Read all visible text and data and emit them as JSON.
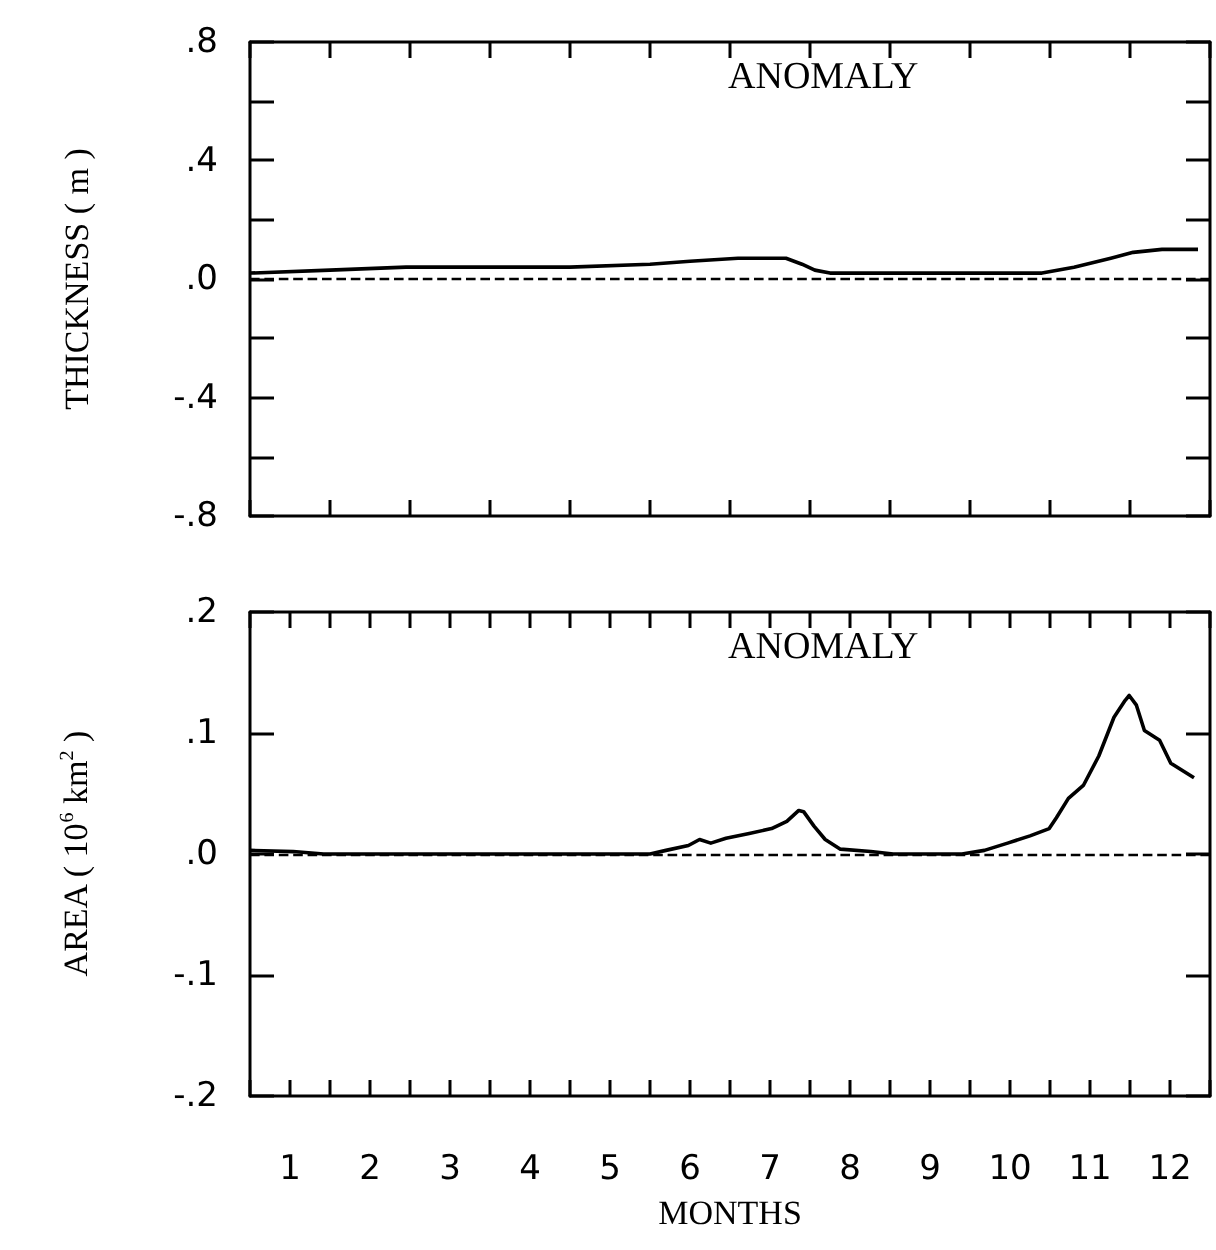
{
  "chart_data": [
    {
      "type": "line",
      "ylabel": "THICKNESS ( m )",
      "annotations": [
        "ANOMALY"
      ],
      "tick_labels": "y",
      "grid": false,
      "marker": "none",
      "line_style": "solid",
      "xlim": [
        0,
        12
      ],
      "xticks": [
        {
          "value": 0,
          "label": null
        },
        {
          "value": 1,
          "label": null
        },
        {
          "value": 2,
          "label": null
        },
        {
          "value": 3,
          "label": null
        },
        {
          "value": 4,
          "label": null
        },
        {
          "value": 5,
          "label": null
        },
        {
          "value": 6,
          "label": null
        },
        {
          "value": 7,
          "label": null
        },
        {
          "value": 8,
          "label": null
        },
        {
          "value": 9,
          "label": null
        },
        {
          "value": 10,
          "label": null
        },
        {
          "value": 11,
          "label": null
        },
        {
          "value": 12,
          "label": null
        }
      ],
      "ylim": [
        -0.8,
        0.8
      ],
      "yticks": [
        {
          "value": -0.8,
          "label": "-.8"
        },
        {
          "value": -0.6,
          "label": null
        },
        {
          "value": -0.4,
          "label": "-.4"
        },
        {
          "value": -0.2,
          "label": null
        },
        {
          "value": 0,
          "label": ".0"
        },
        {
          "value": 0.2,
          "label": null
        },
        {
          "value": 0.4,
          "label": ".4"
        },
        {
          "value": 0.6,
          "label": null
        },
        {
          "value": 0.8,
          "label": ".8"
        }
      ],
      "ref_lines": [
        {
          "axis": "y",
          "value": 0,
          "line_style": "dashed",
          "color": "#000000"
        }
      ],
      "series": [
        {
          "color": "#000000",
          "x": [
            0,
            1,
            1.95,
            4,
            5,
            5.5,
            6.1,
            6.7,
            6.9,
            7.06,
            7.25,
            7.9,
            8.86,
            9.8,
            9.9,
            10.3,
            10.76,
            11.04,
            11.4,
            11.85
          ],
          "values": [
            0.02,
            0.03,
            0.04,
            0.04,
            0.05,
            0.06,
            0.07,
            0.07,
            0.05,
            0.03,
            0.02,
            0.02,
            0.02,
            0.02,
            0.02,
            0.04,
            0.07,
            0.09,
            0.1,
            0.1
          ]
        }
      ]
    },
    {
      "type": "line",
      "ylabel": "AREA ( 10$^{6}$ km$^{2}$ )",
      "xlabel": "MONTHS",
      "annotations": [
        "ANOMALY"
      ],
      "grid": false,
      "marker": "none",
      "line_style": "solid",
      "xlim": [
        0,
        12
      ],
      "xticks": [
        {
          "value": 0,
          "label": null
        },
        {
          "value": 0.5,
          "label": "1"
        },
        {
          "value": 1,
          "label": null
        },
        {
          "value": 1.5,
          "label": "2"
        },
        {
          "value": 2,
          "label": null
        },
        {
          "value": 2.5,
          "label": "3"
        },
        {
          "value": 3,
          "label": null
        },
        {
          "value": 3.5,
          "label": "4"
        },
        {
          "value": 4,
          "label": null
        },
        {
          "value": 4.5,
          "label": "5"
        },
        {
          "value": 5,
          "label": null
        },
        {
          "value": 5.5,
          "label": "6"
        },
        {
          "value": 6,
          "label": null
        },
        {
          "value": 6.5,
          "label": "7"
        },
        {
          "value": 7,
          "label": null
        },
        {
          "value": 7.5,
          "label": "8"
        },
        {
          "value": 8,
          "label": null
        },
        {
          "value": 8.5,
          "label": "9"
        },
        {
          "value": 9,
          "label": null
        },
        {
          "value": 9.5,
          "label": "10"
        },
        {
          "value": 10,
          "label": null
        },
        {
          "value": 10.5,
          "label": "11"
        },
        {
          "value": 11,
          "label": null
        },
        {
          "value": 11.5,
          "label": "12"
        },
        {
          "value": 12,
          "label": null
        }
      ],
      "ylim": [
        -0.2,
        0.2
      ],
      "yticks": [
        {
          "value": -0.2,
          "label": "-.2"
        },
        {
          "value": -0.1,
          "label": "-.1"
        },
        {
          "value": 0,
          "label": ".0"
        },
        {
          "value": 0.1,
          "label": ".1"
        },
        {
          "value": 0.2,
          "label": ".2"
        }
      ],
      "ref_lines": [
        {
          "axis": "y",
          "value": 0,
          "line_style": "dashed",
          "color": "#000000"
        }
      ],
      "series": [
        {
          "color": "#000000",
          "x": [
            0,
            0.54,
            0.92,
            5,
            5.2,
            5.48,
            5.62,
            5.76,
            5.95,
            6.24,
            6.52,
            6.71,
            6.86,
            6.92,
            7.05,
            7.19,
            7.38,
            7.76,
            8.04,
            8.9,
            9.18,
            9.47,
            9.75,
            9.99,
            10.08,
            10.23,
            10.42,
            10.61,
            10.8,
            10.94,
            10.99,
            11.08,
            11.18,
            11.37,
            11.51,
            11.8
          ],
          "values": [
            0.003,
            0.002,
            0,
            0,
            0.003,
            0.007,
            0.012,
            0.009,
            0.013,
            0.017,
            0.021,
            0.027,
            0.036,
            0.035,
            0.023,
            0.012,
            0.004,
            0.002,
            0,
            0,
            0.003,
            0.009,
            0.015,
            0.021,
            0.03,
            0.046,
            0.057,
            0.081,
            0.113,
            0.127,
            0.131,
            0.123,
            0.102,
            0.094,
            0.075,
            0.063
          ]
        }
      ]
    }
  ]
}
